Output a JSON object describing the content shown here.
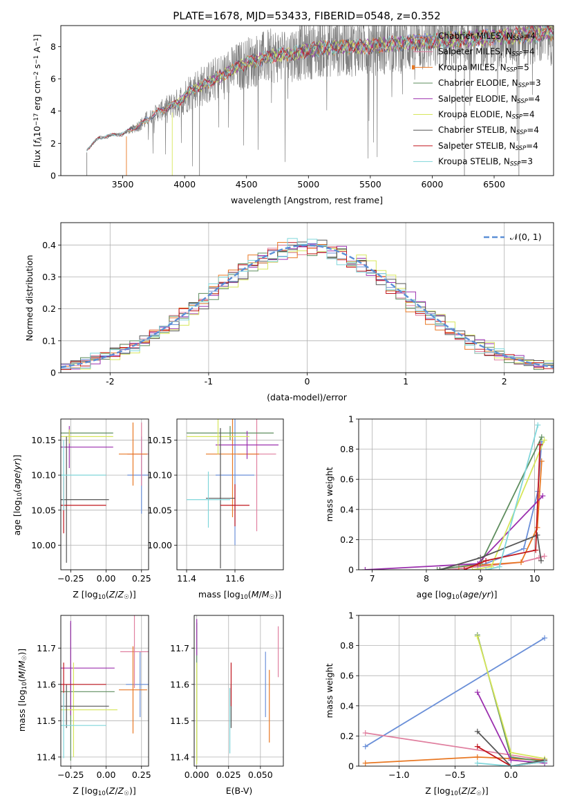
{
  "colors": {
    "chabrier_miles": "#6a8fd8",
    "salpeter_miles": "#e07f9f",
    "kroupa_miles": "#e87722",
    "chabrier_elodie": "#5e8d5e",
    "salpeter_elodie": "#9b2fae",
    "kroupa_elodie": "#d6e65a",
    "chabrier_stelib": "#555555",
    "salpeter_stelib": "#c0141c",
    "kroupa_stelib": "#7fd6da",
    "data": "#808080",
    "normal": "#5b8fd6"
  },
  "chart_data": [
    {
      "id": "spectrum",
      "type": "line",
      "title": "PLATE=1678, MJD=53433, FIBERID=0548, z=0.352",
      "xlabel": "wavelength [Angstrom, rest frame]",
      "ylabel": "Flux [fλ10⁻¹⁷ erg cm⁻² s⁻¹ A⁻¹]",
      "xlim": [
        3000,
        6980
      ],
      "ylim": [
        0,
        9.3
      ],
      "xticks": [
        3500,
        4000,
        4500,
        5000,
        5500,
        6000,
        6500
      ],
      "yticks": [
        0,
        2,
        4,
        6,
        8
      ],
      "grid": false,
      "legend_position": "top-right",
      "spectrum_start": 3210,
      "envelope": {
        "x": [
          3210,
          3300,
          3400,
          3500,
          3560,
          3650,
          3750,
          3850,
          3950,
          4050,
          4150,
          4300,
          4500,
          4700,
          4900,
          5100,
          5300,
          5500,
          5700,
          5900,
          6100,
          6300,
          6500,
          6700,
          6980
        ],
        "y": [
          1.6,
          2.3,
          2.5,
          2.6,
          2.8,
          3.2,
          3.8,
          4.2,
          4.5,
          5.3,
          5.6,
          6.2,
          7.0,
          7.4,
          7.6,
          7.9,
          8.0,
          8.0,
          8.2,
          8.3,
          8.4,
          8.5,
          8.6,
          8.7,
          8.9
        ]
      },
      "series": [
        {
          "name": "Chabrier MILES, N_SSP=4",
          "label_main": "Chabrier MILES, N",
          "sub": "SSP",
          "label_end": "=4",
          "color_key": "chabrier_miles",
          "start": 3540
        },
        {
          "name": "Salpeter MILES, N_SSP=4",
          "label_main": "Salpeter MILES, N",
          "sub": "SSP",
          "label_end": "=4",
          "color_key": "salpeter_miles",
          "start": 3540
        },
        {
          "name": "Kroupa MILES, N_SSP=5",
          "label_main": "Kroupa MILES, N",
          "sub": "SSP",
          "label_end": "=5",
          "color_key": "kroupa_miles",
          "start": 3540
        },
        {
          "name": "Chabrier ELODIE, N_SSP=3",
          "label_main": "Chabrier ELODIE, N",
          "sub": "SSP",
          "label_end": "=3",
          "color_key": "chabrier_elodie",
          "start": 3900
        },
        {
          "name": "Salpeter ELODIE, N_SSP=4",
          "label_main": "Salpeter ELODIE, N",
          "sub": "SSP",
          "label_end": "=4",
          "color_key": "salpeter_elodie",
          "start": 3900
        },
        {
          "name": "Kroupa ELODIE, N_SSP=4",
          "label_main": "Kroupa ELODIE, N",
          "sub": "SSP",
          "label_end": "=4",
          "color_key": "kroupa_elodie",
          "start": 3900
        },
        {
          "name": "Chabrier STELIB, N_SSP=4",
          "label_main": "Chabrier STELIB, N",
          "sub": "SSP",
          "label_end": "=4",
          "color_key": "chabrier_stelib",
          "start": 3210
        },
        {
          "name": "Salpeter STELIB, N_SSP=4",
          "label_main": "Salpeter STELIB, N",
          "sub": "SSP",
          "label_end": "=4",
          "color_key": "salpeter_stelib",
          "start": 3210
        },
        {
          "name": "Kroupa STELIB, N_SSP=3",
          "label_main": "Kroupa STELIB, N",
          "sub": "SSP",
          "label_end": "=3",
          "color_key": "kroupa_stelib",
          "start": 3210
        }
      ]
    },
    {
      "id": "residuals",
      "type": "line",
      "xlabel": "(data-model)/error",
      "ylabel": "Normed distribution",
      "xlim": [
        -2.5,
        2.5
      ],
      "ylim": [
        0,
        0.47
      ],
      "xticks": [
        -2,
        -1,
        0,
        1,
        2
      ],
      "yticks": [
        0.0,
        0.1,
        0.2,
        0.3,
        0.4
      ],
      "grid": true,
      "legend": "𝒩(0, 1)",
      "legend_position": "top-right",
      "bin_width": 0.1,
      "bin_start": -2.5,
      "reference": "normal distribution N(0,1)",
      "series_noise": [
        0.018,
        0.022,
        0.03,
        0.026,
        0.024,
        0.028,
        0.032,
        0.02,
        0.035
      ]
    },
    {
      "id": "z_age",
      "type": "scatter",
      "xlabel": "Z [log₁₀(Z/Z☉)]",
      "ylabel": "age  [log₁₀(age/yr)]",
      "xlim": [
        -0.32,
        0.3
      ],
      "ylim": [
        9.965,
        10.18
      ],
      "xticks": [
        -0.25,
        0.0,
        0.25
      ],
      "xtick_labels": [
        "−0.25",
        "0.00",
        "0.25"
      ],
      "yticks": [
        10.0,
        10.05,
        10.1,
        10.15
      ],
      "ytick_labels": [
        "10.00",
        "10.05",
        "10.10",
        "10.15"
      ],
      "grid": true,
      "points": [
        {
          "color_key": "chabrier_miles",
          "x": 0.25,
          "xerr": 0.1,
          "y": 10.1,
          "yerr": 0.055
        },
        {
          "color_key": "salpeter_miles",
          "x": 0.25,
          "xerr": 0.1,
          "y": 10.13,
          "yerr": 0.045
        },
        {
          "color_key": "kroupa_miles",
          "x": 0.19,
          "xerr": 0.1,
          "y": 10.13,
          "yerr": 0.045
        },
        {
          "color_key": "chabrier_elodie",
          "x": -0.26,
          "xerr": 0.31,
          "y": 10.16,
          "yerr": 0.005
        },
        {
          "color_key": "salpeter_elodie",
          "x": -0.26,
          "xerr": 0.31,
          "y": 10.14,
          "yerr": 0.03
        },
        {
          "color_key": "kroupa_elodie",
          "x": -0.26,
          "xerr": 0.31,
          "y": 10.155,
          "yerr": 0.01
        },
        {
          "color_key": "chabrier_stelib",
          "x": -0.28,
          "xerr": 0.3,
          "y": 10.065,
          "yerr": 0.09
        },
        {
          "color_key": "salpeter_stelib",
          "x": -0.3,
          "xerr": 0.3,
          "y": 10.057,
          "yerr": 0.04
        },
        {
          "color_key": "kroupa_stelib",
          "x": -0.3,
          "xerr": 0.3,
          "y": 10.1,
          "yerr": 0.05
        }
      ]
    },
    {
      "id": "mass_age",
      "type": "scatter",
      "xlabel": "mass [log₁₀(M/M☉)]",
      "ylabel": "",
      "xlim": [
        11.36,
        11.8
      ],
      "ylim": [
        9.965,
        10.18
      ],
      "xticks": [
        11.4,
        11.6
      ],
      "xtick_labels": [
        "11.4",
        "11.6"
      ],
      "yticks": [
        10.0,
        10.05,
        10.1,
        10.15
      ],
      "ytick_labels": [
        "10.00",
        "10.05",
        "10.10",
        "10.15"
      ],
      "grid": true,
      "points": [
        {
          "color_key": "chabrier_miles",
          "x": 11.6,
          "xerr": 0.08,
          "y": 10.1,
          "yerr": 0.1
        },
        {
          "color_key": "salpeter_miles",
          "x": 11.69,
          "xerr": 0.08,
          "y": 10.13,
          "yerr": 0.11
        },
        {
          "color_key": "kroupa_miles",
          "x": 11.59,
          "xerr": 0.11,
          "y": 10.13,
          "yerr": 0.09
        },
        {
          "color_key": "chabrier_elodie",
          "x": 11.58,
          "xerr": 0.18,
          "y": 10.16,
          "yerr": 0.01
        },
        {
          "color_key": "salpeter_elodie",
          "x": 11.65,
          "xerr": 0.13,
          "y": 10.143,
          "yerr": 0.02
        },
        {
          "color_key": "kroupa_elodie",
          "x": 11.53,
          "xerr": 0.13,
          "y": 10.155,
          "yerr": 0.025
        },
        {
          "color_key": "chabrier_stelib",
          "x": 11.54,
          "xerr": 0.06,
          "y": 10.067,
          "yerr": 0.1
        },
        {
          "color_key": "salpeter_stelib",
          "x": 11.6,
          "xerr": 0.06,
          "y": 10.057,
          "yerr": 0.03
        },
        {
          "color_key": "kroupa_stelib",
          "x": 11.49,
          "xerr": 0.09,
          "y": 10.065,
          "yerr": 0.04
        }
      ]
    },
    {
      "id": "age_weight",
      "type": "line",
      "xlabel": "age  [log₁₀(age/yr)]",
      "ylabel": "mass weight",
      "xlim": [
        6.75,
        10.35
      ],
      "ylim": [
        0,
        1.0
      ],
      "xticks": [
        7,
        8,
        9,
        10
      ],
      "yticks": [
        0.0,
        0.2,
        0.4,
        0.6,
        0.8,
        1.0
      ],
      "grid": true,
      "series": [
        {
          "color_key": "chabrier_miles",
          "x": [
            8.95,
            9.8,
            10.06,
            10.13
          ],
          "y": [
            0.02,
            0.14,
            0.52,
            0.85
          ]
        },
        {
          "color_key": "salpeter_miles",
          "x": [
            8.4,
            9.75,
            10.08,
            10.18
          ],
          "y": [
            0.0,
            0.05,
            0.08,
            0.09
          ]
        },
        {
          "color_key": "kroupa_miles",
          "x": [
            8.6,
            9.75,
            10.05,
            10.13
          ],
          "y": [
            0.02,
            0.05,
            0.28,
            0.72
          ]
        },
        {
          "color_key": "chabrier_elodie",
          "x": [
            8.2,
            9.0,
            10.13
          ],
          "y": [
            0.0,
            0.04,
            0.88
          ]
        },
        {
          "color_key": "salpeter_elodie",
          "x": [
            6.87,
            8.95,
            10.15
          ],
          "y": [
            0.0,
            0.04,
            0.49
          ]
        },
        {
          "color_key": "kroupa_elodie",
          "x": [
            8.85,
            9.2,
            10.18
          ],
          "y": [
            0.0,
            0.02,
            0.86
          ]
        },
        {
          "color_key": "chabrier_stelib",
          "x": [
            8.25,
            9.0,
            10.05,
            10.12
          ],
          "y": [
            0.0,
            0.08,
            0.23,
            0.06
          ]
        },
        {
          "color_key": "salpeter_stelib",
          "x": [
            8.7,
            9.1,
            10.02,
            10.1
          ],
          "y": [
            0.0,
            0.06,
            0.13,
            0.83
          ]
        },
        {
          "color_key": "kroupa_stelib",
          "x": [
            9.1,
            9.35,
            10.06
          ],
          "y": [
            0.0,
            0.02,
            0.96
          ]
        }
      ]
    },
    {
      "id": "z_mass",
      "type": "scatter",
      "xlabel": "Z [log₁₀(Z/Z☉)]",
      "ylabel": "mass [log₁₀(M/M☉)]",
      "xlim": [
        -0.32,
        0.3
      ],
      "ylim": [
        11.375,
        11.79
      ],
      "xticks": [
        -0.25,
        0.0,
        0.25
      ],
      "xtick_labels": [
        "−0.25",
        "0.00",
        "0.25"
      ],
      "yticks": [
        11.4,
        11.5,
        11.6,
        11.7
      ],
      "ytick_labels": [
        "11.4",
        "11.5",
        "11.6",
        "11.7"
      ],
      "grid": true,
      "points": [
        {
          "color_key": "chabrier_miles",
          "x": 0.24,
          "xerr": 0.1,
          "y": 11.6,
          "yerr": 0.09
        },
        {
          "color_key": "salpeter_miles",
          "x": 0.2,
          "xerr": 0.1,
          "y": 11.69,
          "yerr": 0.1
        },
        {
          "color_key": "kroupa_miles",
          "x": 0.19,
          "xerr": 0.1,
          "y": 11.585,
          "yerr": 0.12
        },
        {
          "color_key": "chabrier_elodie",
          "x": -0.25,
          "xerr": 0.31,
          "y": 11.58,
          "yerr": 0.19
        },
        {
          "color_key": "salpeter_elodie",
          "x": -0.25,
          "xerr": 0.31,
          "y": 11.645,
          "yerr": 0.13
        },
        {
          "color_key": "kroupa_elodie",
          "x": -0.23,
          "xerr": 0.31,
          "y": 11.53,
          "yerr": 0.13
        },
        {
          "color_key": "chabrier_stelib",
          "x": -0.28,
          "xerr": 0.3,
          "y": 11.54,
          "yerr": 0.06
        },
        {
          "color_key": "salpeter_stelib",
          "x": -0.3,
          "xerr": 0.3,
          "y": 11.6,
          "yerr": 0.06
        },
        {
          "color_key": "kroupa_stelib",
          "x": -0.3,
          "xerr": 0.3,
          "y": 11.487,
          "yerr": 0.09
        }
      ]
    },
    {
      "id": "ebv_mass",
      "type": "scatter",
      "xlabel": "E(B-V)",
      "ylabel": "",
      "xlim": [
        -0.002,
        0.068
      ],
      "ylim": [
        11.375,
        11.79
      ],
      "xticks": [
        0.0,
        0.025,
        0.05
      ],
      "xtick_labels": [
        "0.000",
        "0.025",
        "0.050"
      ],
      "yticks": [
        11.4,
        11.5,
        11.6,
        11.7
      ],
      "ytick_labels": [
        "11.4",
        "11.5",
        "11.6",
        "11.7"
      ],
      "grid": true,
      "points": [
        {
          "color_key": "chabrier_miles",
          "x": 0.054,
          "xerr": 0,
          "y": 11.6,
          "yerr": 0.09
        },
        {
          "color_key": "salpeter_miles",
          "x": 0.064,
          "xerr": 0,
          "y": 11.69,
          "yerr": 0.07
        },
        {
          "color_key": "kroupa_miles",
          "x": 0.057,
          "xerr": 0,
          "y": 11.54,
          "yerr": 0.1
        },
        {
          "color_key": "chabrier_elodie",
          "x": 0.0,
          "xerr": 0,
          "y": 11.58,
          "yerr": 0.19
        },
        {
          "color_key": "salpeter_elodie",
          "x": 0.0,
          "xerr": 0,
          "y": 11.73,
          "yerr": 0.05
        },
        {
          "color_key": "kroupa_elodie",
          "x": 0.0,
          "xerr": 0,
          "y": 11.52,
          "yerr": 0.14
        },
        {
          "color_key": "chabrier_stelib",
          "x": 0.027,
          "xerr": 0,
          "y": 11.54,
          "yerr": 0.06
        },
        {
          "color_key": "salpeter_stelib",
          "x": 0.027,
          "xerr": 0,
          "y": 11.6,
          "yerr": 0.06
        },
        {
          "color_key": "kroupa_stelib",
          "x": 0.026,
          "xerr": 0,
          "y": 11.5,
          "yerr": 0.09
        }
      ]
    },
    {
      "id": "z_weight",
      "type": "line",
      "xlabel": "Z [log₁₀(Z/Z☉)]",
      "ylabel": "mass weight",
      "xlim": [
        -1.36,
        0.38
      ],
      "ylim": [
        0,
        1.0
      ],
      "xticks": [
        -1.0,
        -0.5,
        0.0
      ],
      "xtick_labels": [
        "−1.0",
        "−0.5",
        "0.0"
      ],
      "yticks": [
        0.0,
        0.2,
        0.4,
        0.6,
        0.8,
        1.0
      ],
      "grid": true,
      "series": [
        {
          "color_key": "chabrier_miles",
          "x": [
            -1.3,
            0.3
          ],
          "y": [
            0.13,
            0.85
          ]
        },
        {
          "color_key": "salpeter_miles",
          "x": [
            -1.3,
            0.3
          ],
          "y": [
            0.22,
            0.04
          ]
        },
        {
          "color_key": "kroupa_miles",
          "x": [
            -1.3,
            -0.3,
            0.3
          ],
          "y": [
            0.02,
            0.06,
            0.04
          ]
        },
        {
          "color_key": "chabrier_elodie",
          "x": [
            -0.3,
            0.0,
            0.3
          ],
          "y": [
            0.87,
            0.06,
            0.03
          ]
        },
        {
          "color_key": "salpeter_elodie",
          "x": [
            -0.3,
            0.0,
            0.3
          ],
          "y": [
            0.49,
            0.04,
            0.02
          ]
        },
        {
          "color_key": "kroupa_elodie",
          "x": [
            -0.3,
            0.0,
            0.3
          ],
          "y": [
            0.86,
            0.09,
            0.05
          ]
        },
        {
          "color_key": "chabrier_stelib",
          "x": [
            -0.3,
            0.0,
            0.3
          ],
          "y": [
            0.23,
            0.0,
            0.04
          ]
        },
        {
          "color_key": "salpeter_stelib",
          "x": [
            -0.3,
            0.0,
            0.3
          ],
          "y": [
            0.13,
            0.0,
            0.03
          ]
        },
        {
          "color_key": "kroupa_stelib",
          "x": [
            -0.3,
            0.0,
            0.3
          ],
          "y": [
            0.02,
            0.0,
            0.03
          ]
        }
      ]
    }
  ]
}
